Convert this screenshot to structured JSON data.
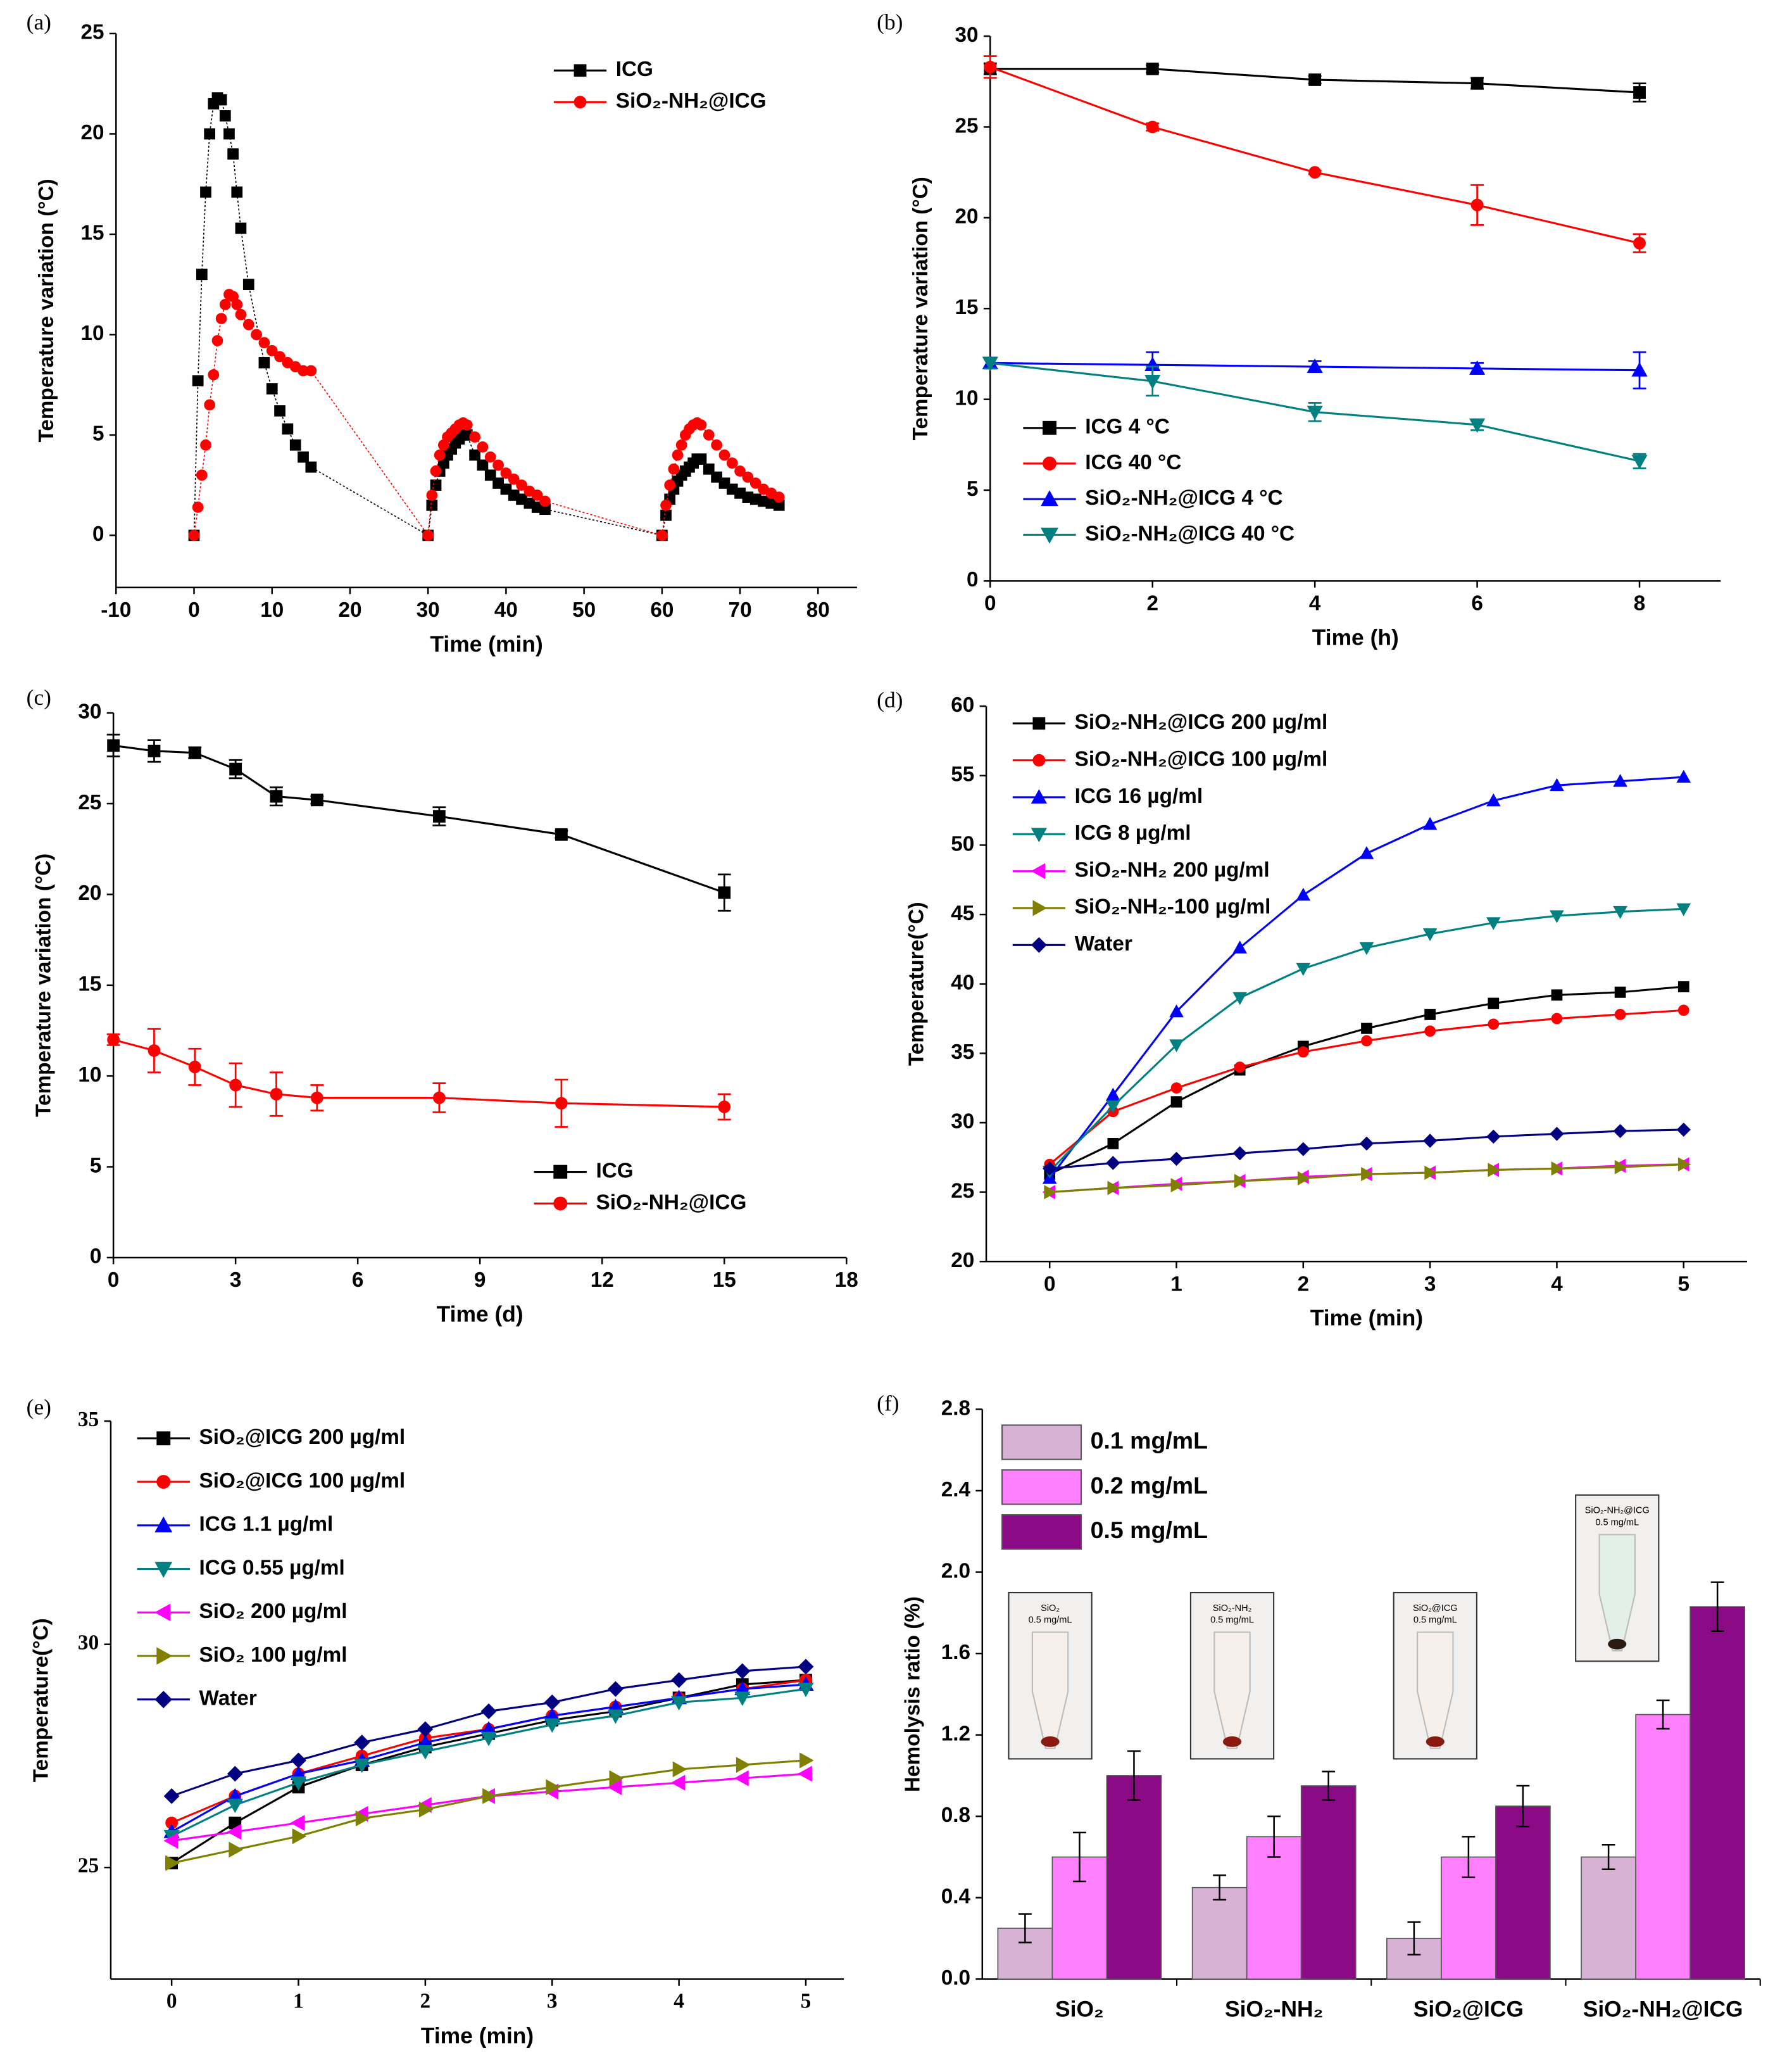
{
  "chart_data": [
    {
      "type": "line",
      "label": "(a)",
      "xlabel": "Time (min)",
      "ylabel": "Temperature  variation (°C)",
      "xlim": [
        -10,
        85
      ],
      "xticks": [
        -10,
        0,
        10,
        20,
        30,
        40,
        50,
        60,
        70,
        80
      ],
      "ylim": [
        -2.6,
        25
      ],
      "yticks": [
        0,
        5,
        10,
        15,
        20,
        25
      ],
      "legend": "upper right",
      "series": [
        {
          "name": "ICG",
          "color": "#000000",
          "marker": "square",
          "linestyle": "dotted",
          "x": [
            0,
            0.5,
            1,
            1.5,
            2,
            2.5,
            3,
            3.5,
            4,
            4.5,
            5,
            5.5,
            6,
            7,
            9,
            10,
            11,
            12,
            13,
            14,
            15,
            30,
            30.5,
            31,
            31.5,
            32,
            32.5,
            33,
            33.5,
            34,
            34.5,
            35,
            36,
            37,
            38,
            39,
            40,
            41,
            42,
            43,
            44,
            45,
            60,
            60.5,
            61,
            61.5,
            62,
            62.5,
            63,
            63.5,
            64,
            64.5,
            65,
            66,
            67,
            68,
            69,
            70,
            71,
            72,
            73,
            74,
            75
          ],
          "values": [
            0,
            7.7,
            13,
            17.1,
            20,
            21.5,
            21.8,
            21.7,
            20.9,
            20,
            19,
            17.1,
            15.3,
            12.5,
            8.6,
            7.3,
            6.2,
            5.3,
            4.5,
            3.9,
            3.4,
            0,
            1.5,
            2.5,
            3.2,
            3.6,
            4,
            4.3,
            4.6,
            4.8,
            5,
            5,
            4,
            3.5,
            3,
            2.6,
            2.3,
            2,
            1.8,
            1.6,
            1.4,
            1.3,
            0,
            1,
            1.8,
            2.3,
            2.7,
            3,
            3.2,
            3.4,
            3.6,
            3.8,
            3.8,
            3.3,
            2.9,
            2.6,
            2.3,
            2.1,
            1.9,
            1.8,
            1.7,
            1.6,
            1.5
          ]
        },
        {
          "name": "SiO₂-NH₂@ICG",
          "color": "#ff0000",
          "marker": "circle",
          "linestyle": "dotted",
          "x": [
            0,
            0.5,
            1,
            1.5,
            2,
            2.5,
            3,
            3.5,
            4,
            4.5,
            5,
            5.5,
            6,
            7,
            8,
            9,
            10,
            11,
            12,
            13,
            14,
            15,
            30,
            30.5,
            31,
            31.5,
            32,
            32.5,
            33,
            33.5,
            34,
            34.5,
            35,
            36,
            37,
            38,
            39,
            40,
            41,
            42,
            43,
            44,
            45,
            60,
            60.5,
            61,
            61.5,
            62,
            62.5,
            63,
            63.5,
            64,
            64.5,
            65,
            66,
            67,
            68,
            69,
            70,
            71,
            72,
            73,
            74,
            75
          ],
          "values": [
            0,
            1.4,
            3,
            4.5,
            6.5,
            8,
            9.7,
            10.8,
            11.5,
            12,
            11.9,
            11.5,
            11,
            10.5,
            10,
            9.6,
            9.2,
            8.9,
            8.6,
            8.4,
            8.2,
            8.2,
            0,
            2,
            3.2,
            4,
            4.5,
            4.9,
            5.1,
            5.3,
            5.5,
            5.6,
            5.5,
            4.9,
            4.4,
            3.9,
            3.5,
            3.1,
            2.8,
            2.5,
            2.2,
            2,
            1.7,
            0,
            1.5,
            2.5,
            3.3,
            4,
            4.5,
            5,
            5.3,
            5.5,
            5.6,
            5.5,
            5,
            4.5,
            4,
            3.6,
            3.2,
            2.9,
            2.6,
            2.3,
            2.1,
            1.9
          ]
        }
      ]
    },
    {
      "type": "line",
      "label": "(b)",
      "xlabel": "Time (h)",
      "ylabel": "Temperature variation (°C)",
      "xlim": [
        0,
        9
      ],
      "xticks": [
        0,
        2,
        4,
        6,
        8
      ],
      "ylim": [
        0,
        30
      ],
      "yticks": [
        0,
        5,
        10,
        15,
        20,
        25,
        30
      ],
      "legend": "lower left",
      "series": [
        {
          "name": "ICG 4 °C",
          "color": "#000000",
          "marker": "square",
          "x": [
            0,
            2,
            4,
            6,
            8
          ],
          "values": [
            28.2,
            28.2,
            27.6,
            27.4,
            26.9
          ],
          "errors": [
            0.3,
            0.2,
            0.2,
            0.3,
            0.5
          ]
        },
        {
          "name": "ICG 40 °C",
          "color": "#ff0000",
          "marker": "circle",
          "x": [
            0,
            2,
            4,
            6,
            8
          ],
          "values": [
            28.3,
            25,
            22.5,
            20.7,
            18.6
          ],
          "errors": [
            0.6,
            0.2,
            0.1,
            1.1,
            0.5
          ]
        },
        {
          "name": "SiO₂-NH₂@ICG  4 °C",
          "color": "#0000ff",
          "marker": "triangle-up",
          "x": [
            0,
            2,
            4,
            6,
            8
          ],
          "values": [
            12,
            11.9,
            11.8,
            11.7,
            11.6
          ],
          "errors": [
            0.3,
            0.7,
            0.3,
            0.3,
            1
          ]
        },
        {
          "name": "SiO₂-NH₂@ICG  40 °C",
          "color": "#008080",
          "marker": "triangle-down",
          "x": [
            0,
            2,
            4,
            6,
            8
          ],
          "values": [
            12,
            11,
            9.3,
            8.6,
            6.6
          ],
          "errors": [
            0.3,
            0.8,
            0.5,
            0.3,
            0.4
          ]
        }
      ]
    },
    {
      "type": "line",
      "label": "(c)",
      "xlabel": "Time (d)",
      "ylabel": "Temperature variation (°C)",
      "xlim": [
        0,
        18
      ],
      "xticks": [
        0,
        3,
        6,
        9,
        12,
        15,
        18
      ],
      "ylim": [
        0,
        30
      ],
      "yticks": [
        0,
        5,
        10,
        15,
        20,
        25,
        30
      ],
      "legend": "lower right",
      "series": [
        {
          "name": "ICG",
          "color": "#000000",
          "marker": "square",
          "x": [
            0,
            1,
            2,
            3,
            4,
            5,
            8,
            11,
            15
          ],
          "values": [
            28.2,
            27.9,
            27.8,
            26.9,
            25.4,
            25.2,
            24.3,
            23.3,
            20.1
          ],
          "errors": [
            0.6,
            0.6,
            0.3,
            0.5,
            0.5,
            0.2,
            0.5,
            0.2,
            1
          ]
        },
        {
          "name": "SiO₂-NH₂@ICG",
          "color": "#ff0000",
          "marker": "circle",
          "x": [
            0,
            1,
            2,
            3,
            4,
            5,
            8,
            11,
            15
          ],
          "values": [
            12,
            11.4,
            10.5,
            9.5,
            9,
            8.8,
            8.8,
            8.5,
            8.3
          ],
          "errors": [
            0.3,
            1.2,
            1,
            1.2,
            1.2,
            0.7,
            0.8,
            1.3,
            0.7
          ]
        }
      ]
    },
    {
      "type": "line",
      "label": "(d)",
      "xlabel": "Time (min)",
      "ylabel": "Temperature(°C)",
      "xlim": [
        -0.5,
        5.5
      ],
      "xticks": [
        0,
        1,
        2,
        3,
        4,
        5
      ],
      "ylim": [
        20,
        60
      ],
      "yticks": [
        20,
        25,
        30,
        35,
        40,
        45,
        50,
        55,
        60
      ],
      "legend": "upper left",
      "x": [
        0,
        0.5,
        1,
        1.5,
        2,
        2.5,
        3,
        3.5,
        4,
        4.5,
        5
      ],
      "series": [
        {
          "name": "SiO₂-NH₂@ICG 200 µg/ml",
          "color": "#000000",
          "marker": "square",
          "values": [
            26.3,
            28.5,
            31.5,
            33.8,
            35.5,
            36.8,
            37.8,
            38.6,
            39.2,
            39.4,
            39.8
          ]
        },
        {
          "name": "SiO₂-NH₂@ICG 100 µg/ml",
          "color": "#ff0000",
          "marker": "circle",
          "values": [
            27,
            30.8,
            32.5,
            34,
            35.1,
            35.9,
            36.6,
            37.1,
            37.5,
            37.8,
            38.1
          ]
        },
        {
          "name": "ICG 16 µg/ml",
          "color": "#0000ff",
          "marker": "triangle-up",
          "values": [
            26,
            32,
            38,
            42.6,
            46.4,
            49.4,
            51.5,
            53.2,
            54.3,
            54.6,
            54.9
          ]
        },
        {
          "name": "ICG 8 µg/ml",
          "color": "#008080",
          "marker": "triangle-down",
          "values": [
            26.5,
            31.2,
            35.6,
            39,
            41.1,
            42.6,
            43.6,
            44.4,
            44.9,
            45.2,
            45.4
          ]
        },
        {
          "name": "SiO₂-NH₂ 200 µg/ml",
          "color": "#ff00ff",
          "marker": "triangle-left",
          "values": [
            25,
            25.3,
            25.6,
            25.8,
            26.1,
            26.3,
            26.4,
            26.6,
            26.7,
            26.9,
            27
          ]
        },
        {
          "name": "SiO₂-NH₂-100 µg/ml",
          "color": "#808000",
          "marker": "triangle-right",
          "values": [
            25,
            25.3,
            25.5,
            25.8,
            26,
            26.3,
            26.4,
            26.6,
            26.7,
            26.8,
            27
          ]
        },
        {
          "name": "Water",
          "color": "#000080",
          "marker": "diamond",
          "values": [
            26.7,
            27.1,
            27.4,
            27.8,
            28.1,
            28.5,
            28.7,
            29,
            29.2,
            29.4,
            29.5
          ]
        }
      ]
    },
    {
      "type": "line",
      "label": "(e)",
      "xlabel": "Time (min)",
      "ylabel": "Temperature(°C)",
      "xlim": [
        -0.48,
        5.3
      ],
      "xticks": [
        0,
        1,
        2,
        3,
        4,
        5
      ],
      "ylim": [
        22.5,
        35
      ],
      "yticks": [
        25,
        30,
        35
      ],
      "legend": "upper left",
      "x": [
        0,
        0.5,
        1,
        1.5,
        2,
        2.5,
        3,
        3.5,
        4,
        4.5,
        5
      ],
      "series": [
        {
          "name": "SiO₂@ICG 200 µg/ml",
          "color": "#000000",
          "marker": "square",
          "values": [
            25.1,
            26,
            26.8,
            27.3,
            27.7,
            28,
            28.3,
            28.5,
            28.8,
            29.1,
            29.2
          ]
        },
        {
          "name": "SiO₂@ICG 100 µg/ml",
          "color": "#ff0000",
          "marker": "circle",
          "values": [
            26,
            26.6,
            27.1,
            27.5,
            27.9,
            28.1,
            28.4,
            28.6,
            28.8,
            29,
            29.2
          ]
        },
        {
          "name": "ICG 1.1 µg/ml",
          "color": "#0000ff",
          "marker": "triangle-up",
          "values": [
            25.8,
            26.6,
            27.1,
            27.4,
            27.8,
            28.1,
            28.4,
            28.6,
            28.8,
            29,
            29.1
          ]
        },
        {
          "name": "ICG 0.55 µg/ml",
          "color": "#008080",
          "marker": "triangle-down",
          "values": [
            25.7,
            26.4,
            26.9,
            27.3,
            27.6,
            27.9,
            28.2,
            28.4,
            28.7,
            28.8,
            29
          ]
        },
        {
          "name": "SiO₂ 200 µg/ml",
          "color": "#ff00ff",
          "marker": "triangle-left",
          "values": [
            25.6,
            25.8,
            26,
            26.2,
            26.4,
            26.6,
            26.7,
            26.8,
            26.9,
            27,
            27.1
          ]
        },
        {
          "name": "SiO₂ 100 µg/ml",
          "color": "#808000",
          "marker": "triangle-right",
          "values": [
            25.1,
            25.4,
            25.7,
            26.1,
            26.3,
            26.6,
            26.8,
            27,
            27.2,
            27.3,
            27.4
          ]
        },
        {
          "name": "Water",
          "color": "#000080",
          "marker": "diamond",
          "values": [
            26.6,
            27.1,
            27.4,
            27.8,
            28.1,
            28.5,
            28.7,
            29,
            29.2,
            29.4,
            29.5
          ]
        }
      ]
    },
    {
      "type": "bar",
      "label": "(f)",
      "ylabel": "Hemolysis ratio (%)",
      "categories": [
        "SiO₂",
        "SiO₂-NH₂",
        "SiO₂@ICG",
        "SiO₂-NH₂@ICG"
      ],
      "ylim": [
        0,
        2.8
      ],
      "yticks": [
        {
          "value": 0,
          "label": "0.0"
        },
        0.4,
        0.8,
        1.2,
        1.6,
        {
          "value": 2,
          "label": "2.0"
        },
        2.4,
        2.8
      ],
      "legend": "upper left",
      "series": [
        {
          "name": "0.1 mg/mL",
          "color": "#d8b2d4",
          "values": [
            0.25,
            0.45,
            0.2,
            0.6
          ],
          "errors": [
            0.07,
            0.06,
            0.08,
            0.06
          ]
        },
        {
          "name": "0.2 mg/mL",
          "color": "#ff80ff",
          "values": [
            0.6,
            0.7,
            0.6,
            1.3
          ],
          "errors": [
            0.12,
            0.1,
            0.1,
            0.07
          ]
        },
        {
          "name": "0.5 mg/mL",
          "color": "#8b0a85",
          "values": [
            1.0,
            0.95,
            0.85,
            1.83
          ],
          "errors": [
            0.12,
            0.07,
            0.1,
            0.12
          ]
        }
      ],
      "insets": [
        {
          "name": "SiO₂",
          "conc": "0.5 mg/mL"
        },
        {
          "name": "SiO₂-NH₂",
          "conc": "0.5 mg/mL"
        },
        {
          "name": "SiO₂@ICG",
          "conc": "0.5 mg/mL"
        },
        {
          "name": "SiO₂-NH₂@ICG",
          "conc": "0.5 mg/mL"
        }
      ]
    }
  ]
}
